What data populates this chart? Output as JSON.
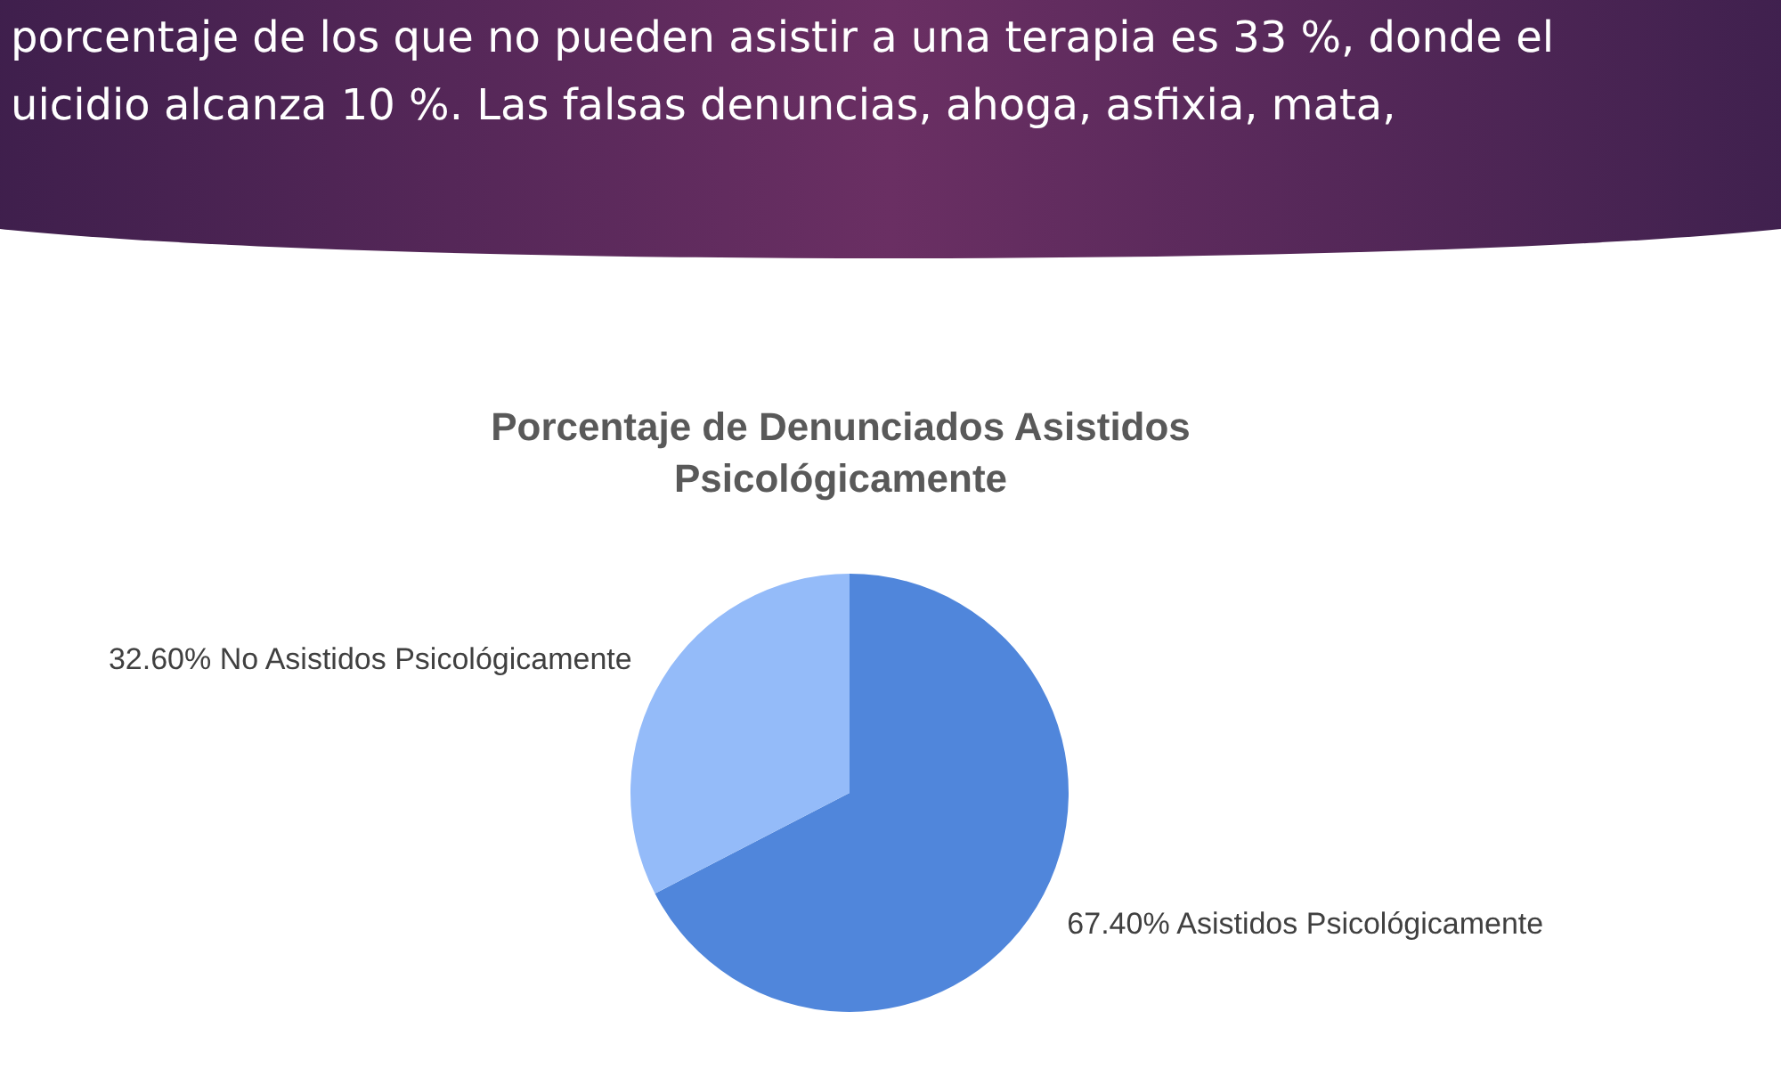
{
  "chart_data": {
    "type": "pie",
    "title": "Porcentaje de Denunciados Asistidos Psicológicamente",
    "categories": [
      "Asistidos Psicológicamente",
      "No Asistidos Psicológicamente"
    ],
    "values": [
      67.4,
      32.6
    ],
    "colors": [
      "#5086db",
      "#94bbf9"
    ],
    "value_labels": [
      "67.40%",
      "32.60%"
    ],
    "legend": false,
    "annotations": [
      "porcentaje de los que no pueden asistir a una terapia es 33 %, donde el",
      "uicidio alcanza 10 %. Las falsas denuncias, ahoga, asfixia, mata,"
    ]
  }
}
